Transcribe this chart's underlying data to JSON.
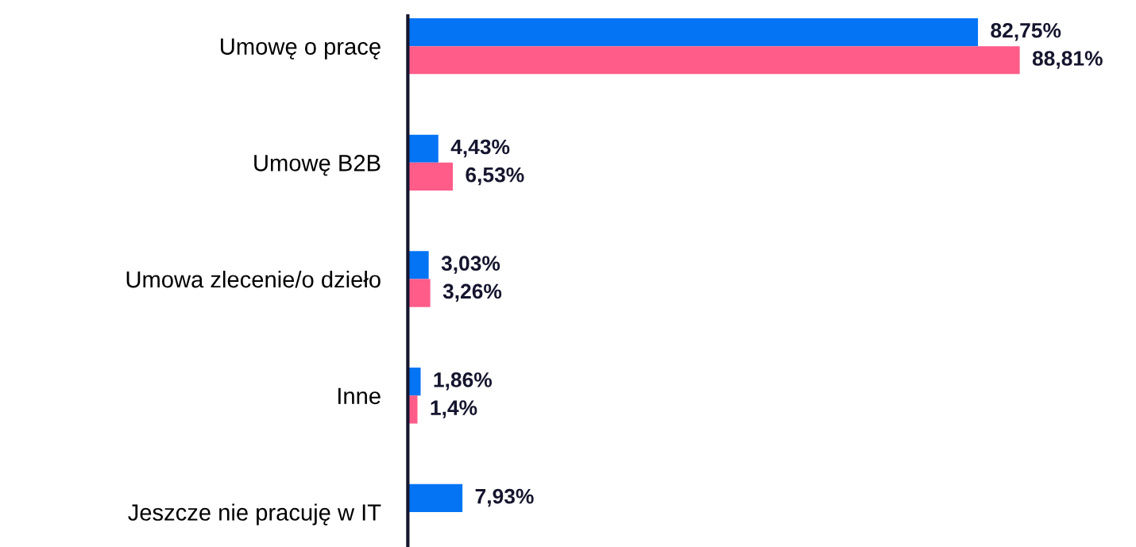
{
  "chart_data": {
    "type": "bar",
    "orientation": "horizontal",
    "categories": [
      "Umowę o pracę",
      "Umowę B2B",
      "Umowa zlecenie/o dzieło",
      "Inne",
      "Jeszcze nie pracuję w IT"
    ],
    "series": [
      {
        "color": "#0474f4",
        "values": [
          82.75,
          4.43,
          3.03,
          1.86,
          7.93
        ],
        "value_labels": [
          "82,75%",
          "4,43%",
          "3,03%",
          "1,86%",
          "7,93%"
        ]
      },
      {
        "color": "#ff5c8a",
        "values": [
          88.81,
          6.53,
          3.26,
          1.4,
          null
        ],
        "value_labels": [
          "88,81%",
          "6,53%",
          "3,26%",
          "1,4%",
          null
        ]
      }
    ],
    "grid": false,
    "legend": false,
    "tick_labels": "y"
  }
}
